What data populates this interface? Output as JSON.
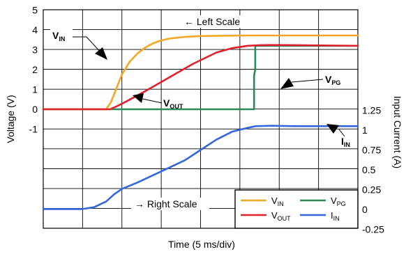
{
  "chart_data": {
    "type": "line",
    "xlabel": "Time (5 ms/div)",
    "ylabel_left": "Voltage (V)",
    "ylabel_right": "Input Current (A)",
    "x_unit": "ms",
    "xlim": [
      0,
      40
    ],
    "left_ticks": [
      "5",
      "4",
      "3",
      "2",
      "1",
      "0",
      "-1"
    ],
    "right_ticks": [
      "1.25",
      "1",
      "0.75",
      "0.5",
      "0.25",
      "0",
      "-0.25"
    ],
    "series": [
      {
        "name": "VIN",
        "label_main": "V",
        "label_sub": "IN",
        "color": "#f5a623",
        "scale": "left",
        "x": [
          0,
          8.0,
          8.6,
          9.4,
          10.0,
          11.0,
          12.0,
          13.0,
          14.0,
          15.0,
          16.0,
          18.0,
          20.0,
          23.0,
          26.0,
          30.0,
          40.0
        ],
        "y": [
          0,
          0,
          0.35,
          1.15,
          1.75,
          2.4,
          2.82,
          3.12,
          3.33,
          3.47,
          3.56,
          3.65,
          3.69,
          3.71,
          3.72,
          3.72,
          3.72
        ]
      },
      {
        "name": "VOUT",
        "label_main": "V",
        "label_sub": "OUT",
        "color": "#e0202a",
        "scale": "left",
        "x": [
          0,
          8.5,
          9.5,
          10.5,
          13.0,
          16.0,
          19.0,
          22.0,
          24.0,
          26.0,
          27.5,
          29.0,
          30.0,
          40.0
        ],
        "y": [
          0,
          0,
          0.18,
          0.38,
          0.92,
          1.6,
          2.28,
          2.86,
          3.08,
          3.2,
          3.23,
          3.24,
          3.24,
          3.2
        ]
      },
      {
        "name": "VPG",
        "label_main": "V",
        "label_sub": "PG",
        "color": "#2a8a5a",
        "scale": "left",
        "x": [
          0,
          26.8,
          26.8,
          26.95,
          26.95,
          40.0
        ],
        "y": [
          0,
          0,
          1.7,
          2.0,
          3.2,
          3.2
        ]
      },
      {
        "name": "IIN",
        "label_main": "I",
        "label_sub": "IN",
        "color": "#3366dd",
        "scale": "right",
        "x": [
          0,
          5.0,
          6.5,
          8.0,
          9.0,
          10.0,
          12.0,
          15.0,
          18.0,
          20.0,
          22.0,
          24.0,
          26.0,
          27.0,
          29.0,
          32.0,
          36.0,
          40.0
        ],
        "y": [
          0.005,
          0.005,
          0.03,
          0.1,
          0.19,
          0.26,
          0.34,
          0.48,
          0.62,
          0.75,
          0.88,
          0.98,
          1.03,
          1.05,
          1.055,
          1.05,
          1.05,
          1.05
        ]
      }
    ],
    "annotations": [
      {
        "text": "← Left Scale"
      },
      {
        "text": "→ Right Scale"
      }
    ],
    "legend": {
      "position": "bottom-right",
      "items": [
        {
          "main": "V",
          "sub": "IN",
          "color": "#f5a623"
        },
        {
          "main": "V",
          "sub": "PG",
          "color": "#2a8a5a"
        },
        {
          "main": "V",
          "sub": "OUT",
          "color": "#e0202a"
        },
        {
          "main": "I",
          "sub": "IN",
          "color": "#3366dd"
        }
      ]
    }
  }
}
